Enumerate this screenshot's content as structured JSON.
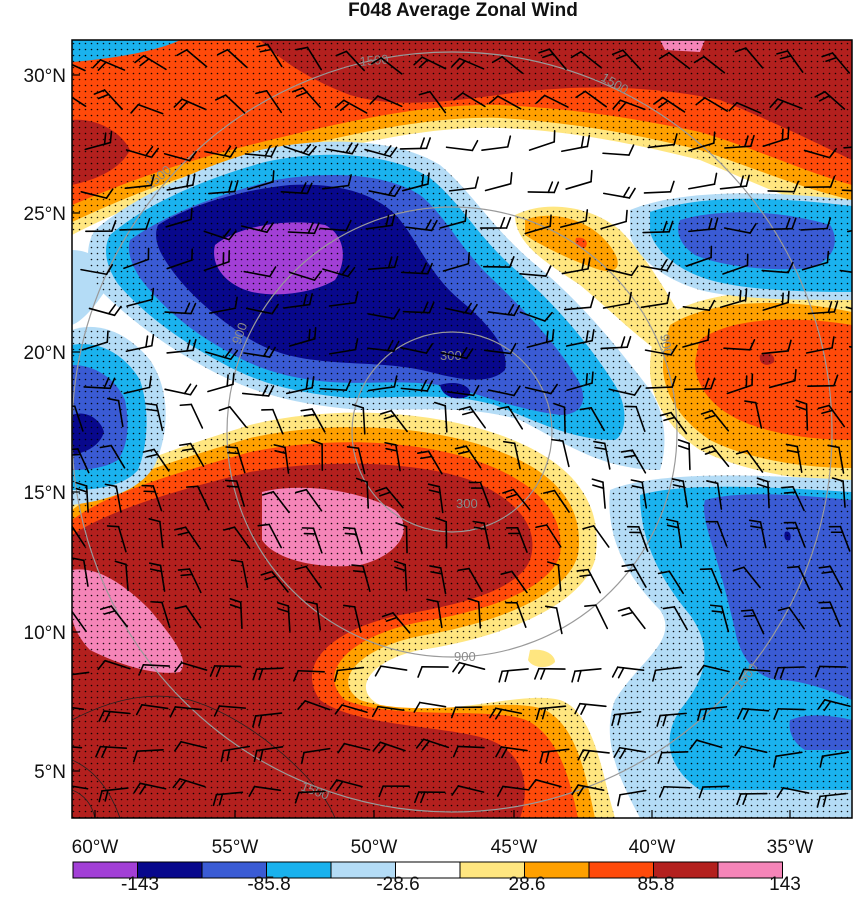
{
  "title": "F048 Average Zonal Wind",
  "lat_ticks": [
    "30°N",
    "25°N",
    "20°N",
    "15°N",
    "10°N",
    "5°N"
  ],
  "lon_ticks": [
    "60°W",
    "55°W",
    "50°W",
    "45°W",
    "40°W",
    "35°W"
  ],
  "colorbar": {
    "colors": [
      "#a23fd6",
      "#08088c",
      "#3a5bd4",
      "#1ab2ee",
      "#b4dcf6",
      "#ffffff",
      "#ffe680",
      "#ffa000",
      "#ff4a0a",
      "#b3201e",
      "#f585b8"
    ],
    "labels": [
      "-143",
      "-85.8",
      "-28.6",
      "28.6",
      "85.8",
      "143"
    ]
  },
  "ring_labels": [
    {
      "text": "300"
    },
    {
      "text": "300"
    },
    {
      "text": "900"
    },
    {
      "text": "900"
    },
    {
      "text": "900"
    },
    {
      "text": "1500"
    },
    {
      "text": "1500"
    },
    {
      "text": "1500"
    },
    {
      "text": "1500"
    },
    {
      "text": "1500"
    }
  ]
}
